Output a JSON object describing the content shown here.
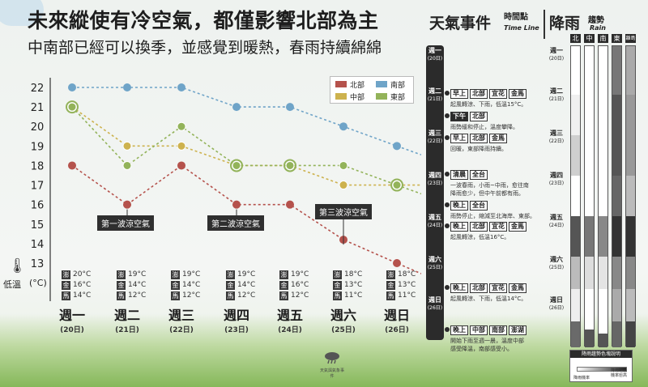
{
  "title": "未來縱使有冷空氣，都僅影響北部為主",
  "subtitle": "中南部已經可以換季，並感覺到暖熱，春雨持續綿綿",
  "chart_data": {
    "type": "line",
    "ylabel": "低溫",
    "yunit": "(°C)",
    "ylim": [
      12.5,
      22.5
    ],
    "yticks": [
      13,
      14,
      15,
      16,
      17,
      18,
      19,
      20,
      21,
      22
    ],
    "grid": false,
    "legend_position": "top-right",
    "categories": [
      "週一",
      "週二",
      "週三",
      "週四",
      "週五",
      "週六",
      "週日"
    ],
    "dates": [
      "(20日)",
      "(21日)",
      "(22日)",
      "(23日)",
      "(24日)",
      "(25日)",
      "(26日)"
    ],
    "series": [
      {
        "name": "北部",
        "color": "#b5524c",
        "values": [
          18,
          16,
          18,
          16,
          16,
          14.2,
          13
        ]
      },
      {
        "name": "南部",
        "color": "#6fa4c8",
        "values": [
          22,
          22,
          22,
          21,
          21,
          20,
          19
        ]
      },
      {
        "name": "中部",
        "color": "#cdb24e",
        "values": [
          21,
          19,
          19,
          18,
          18,
          17,
          17
        ]
      },
      {
        "name": "東部",
        "color": "#93b35a",
        "values": [
          21,
          18,
          20,
          18,
          18,
          18,
          17
        ]
      }
    ],
    "annotations": [
      {
        "text": "第一波涼空氣",
        "x": 1
      },
      {
        "text": "第二波涼空氣",
        "x": 3
      },
      {
        "text": "第三波涼空氣",
        "x": 5
      }
    ],
    "station_temps": [
      {
        "澎": "20°C",
        "金": "16°C",
        "馬": "14°C"
      },
      {
        "澎": "19°C",
        "金": "14°C",
        "馬": "12°C"
      },
      {
        "澎": "19°C",
        "金": "14°C",
        "馬": "12°C"
      },
      {
        "澎": "19°C",
        "金": "14°C",
        "馬": "12°C"
      },
      {
        "澎": "19°C",
        "金": "16°C",
        "馬": "12°C"
      },
      {
        "澎": "18°C",
        "金": "13°C",
        "馬": "11°C"
      },
      {
        "澎": "18°C",
        "金": "13°C",
        "馬": "11°C"
      }
    ]
  },
  "events_panel": {
    "title": "天氣事件",
    "sub": "時間點",
    "sub_en": "Time Line",
    "days": [
      {
        "w": "週一",
        "d": "(20日)"
      },
      {
        "w": "週二",
        "d": "(21日)"
      },
      {
        "w": "週三",
        "d": "(22日)"
      },
      {
        "w": "週四",
        "d": "(23日)"
      },
      {
        "w": "週五",
        "d": "(24日)"
      },
      {
        "w": "週六",
        "d": "(25日)"
      },
      {
        "w": "週日",
        "d": "(26日)"
      }
    ],
    "events": [
      {
        "tags": [
          "早上",
          "北部",
          "宜花",
          "金馬"
        ],
        "text": "起風轉涼、下雨，低溫15°C。"
      },
      {
        "tags": [
          "下午",
          "北部"
        ],
        "text": "雨勢緩和停止，溫度攀降。"
      },
      {
        "tags": [
          "早上",
          "北部",
          "金馬"
        ],
        "text": "回暖，東部降雨持續。"
      },
      {
        "tags": [
          "清晨",
          "全台"
        ],
        "text": "一波春雨，小雨~中雨，愈往南\n降雨愈少，但中午前都有雨。"
      },
      {
        "tags": [
          "晚上",
          "全台"
        ],
        "text": "雨勢停止，縮減至北海岸、東部。"
      },
      {
        "tags": [
          "晚上",
          "北部",
          "宜花",
          "金馬"
        ],
        "text": "起風轉涼，低溫16°C。"
      },
      {
        "tags": [
          "晚上",
          "北部",
          "宜花",
          "金馬"
        ],
        "text": "起風轉涼、下雨，低溫14°C。"
      },
      {
        "tags": [
          "晚上",
          "中部",
          "南部",
          "澎湖"
        ],
        "text": "開始下雨至週一晨，溫度中部\n感受降溫，南部感受小。"
      }
    ]
  },
  "rain_panel": {
    "title": "降雨",
    "sub": "趨勢",
    "sub_en": "Rain",
    "regions": [
      "北",
      "中",
      "南",
      "東",
      "離島"
    ],
    "legend_title": "降雨趨勢色塊說明",
    "legend_low": "降雨機率",
    "legend_high": "降雨範圍\n機率愈高"
  },
  "logo_text": "天氣與氣象事件"
}
